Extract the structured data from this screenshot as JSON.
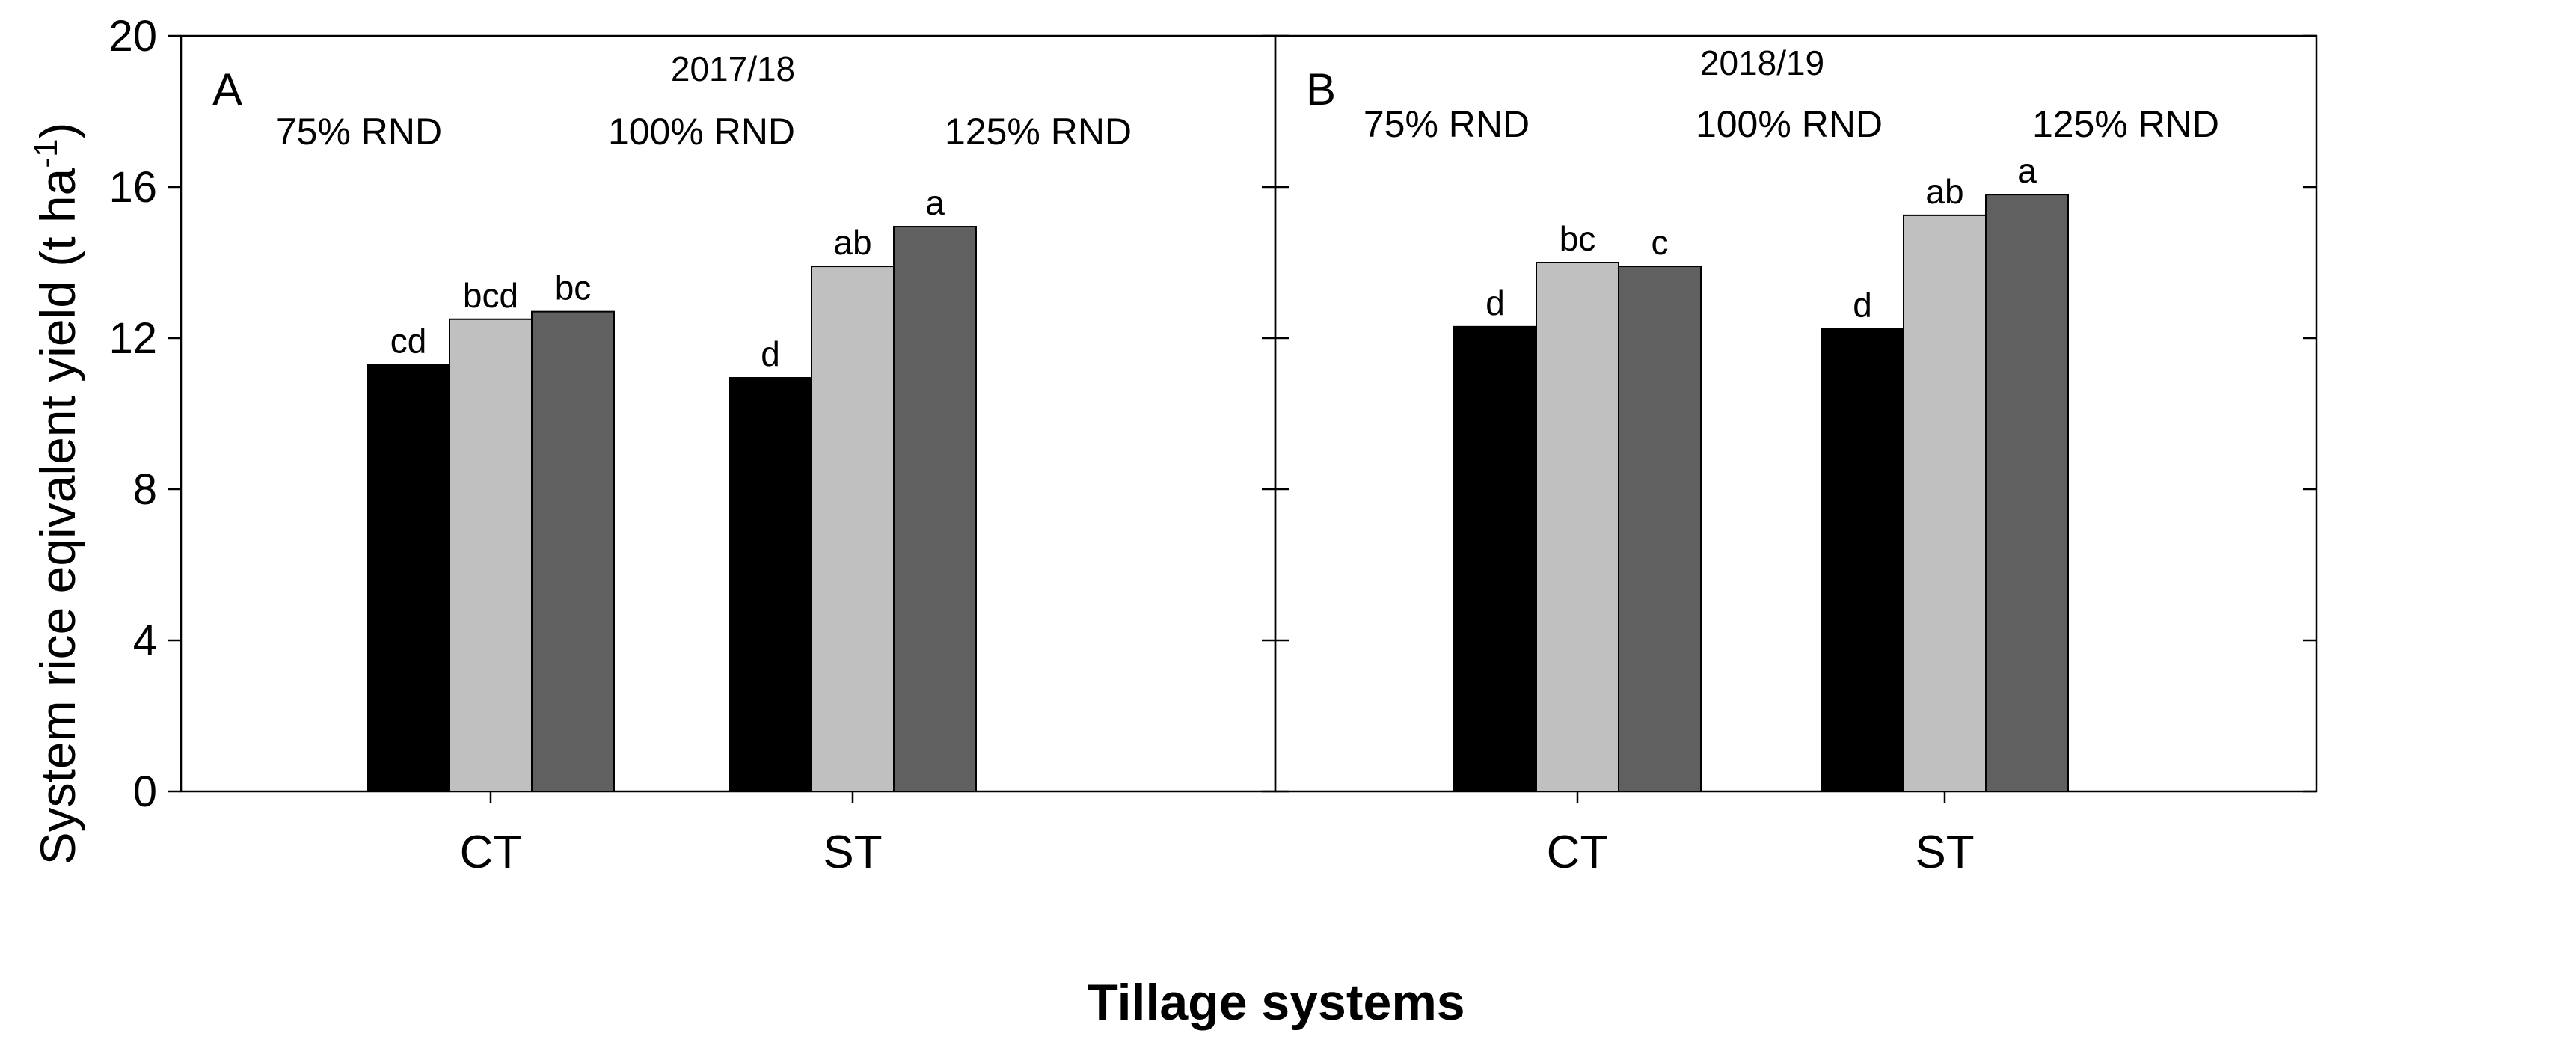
{
  "chart_data": {
    "type": "bar",
    "ylabel_main": "System rice eqivalent yield (t ha",
    "ylabel_sup": "-1",
    "ylabel_close": ")",
    "xlabel": "Tillage systems",
    "ylim": [
      0,
      20
    ],
    "yticks": [
      "0",
      "4",
      "8",
      "12",
      "16",
      "20"
    ],
    "categories": [
      "CT",
      "ST"
    ],
    "series_names": [
      "75% RND",
      "100% RND",
      "125% RND"
    ],
    "series_colors": [
      "#000000",
      "#c0c0c0",
      "#606060"
    ],
    "panels": [
      {
        "letter": "A",
        "season": "2017/18",
        "series": [
          {
            "name": "75% RND",
            "values": [
              11.3,
              10.95
            ],
            "labels": [
              "cd",
              "d"
            ]
          },
          {
            "name": "100% RND",
            "values": [
              12.5,
              13.9
            ],
            "labels": [
              "bcd",
              "ab"
            ]
          },
          {
            "name": "125% RND",
            "values": [
              12.7,
              14.95
            ],
            "labels": [
              "bc",
              "a"
            ]
          }
        ]
      },
      {
        "letter": "B",
        "season": "2018/19",
        "series": [
          {
            "name": "75% RND",
            "values": [
              12.3,
              12.25
            ],
            "labels": [
              "d",
              "d"
            ]
          },
          {
            "name": "100% RND",
            "values": [
              14.0,
              15.25
            ],
            "labels": [
              "bc",
              "ab"
            ]
          },
          {
            "name": "125% RND",
            "values": [
              13.9,
              15.8
            ],
            "labels": [
              "c",
              "a"
            ]
          }
        ]
      }
    ]
  }
}
